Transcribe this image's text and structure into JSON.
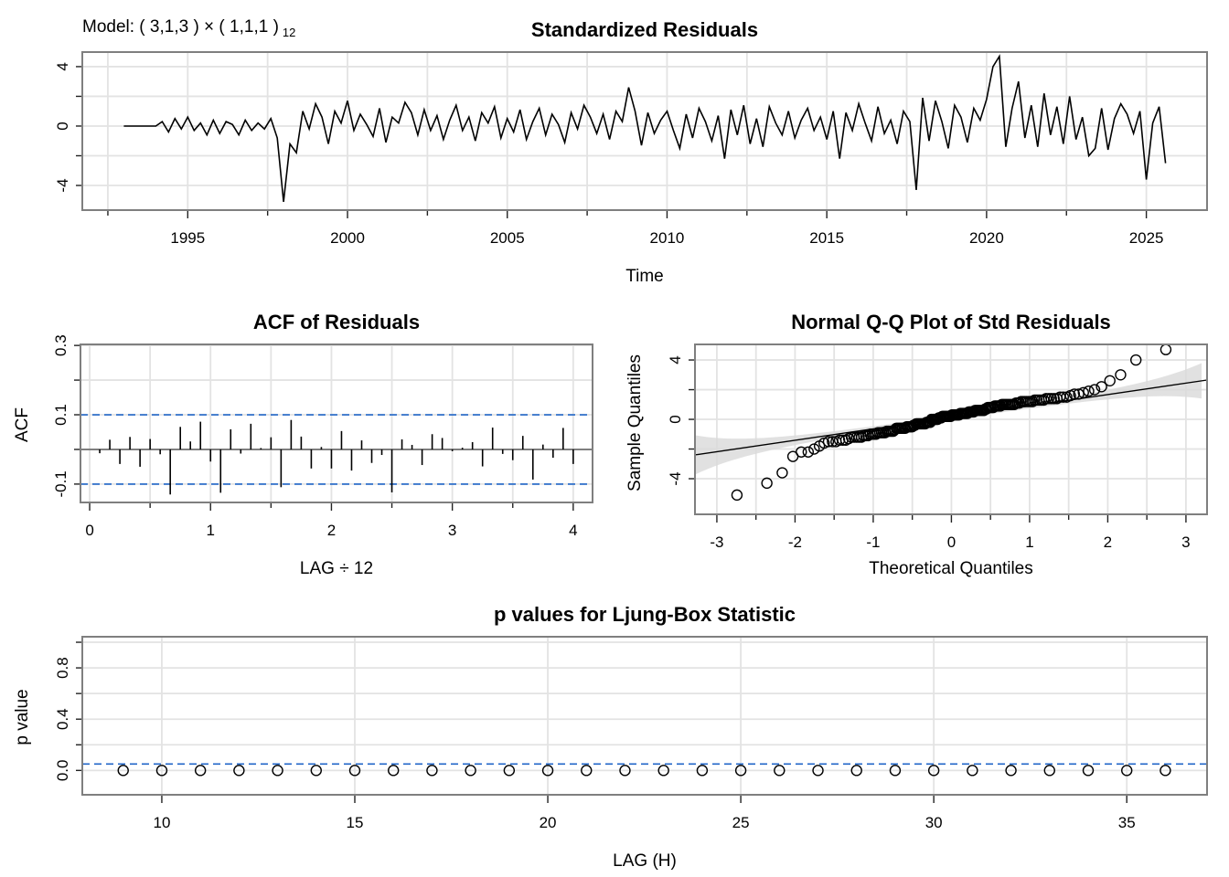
{
  "model_label": {
    "text": "Model: ( 3,1,3 ) × ( 1,1,1 )",
    "subscript": "12"
  },
  "chart_data": [
    {
      "type": "line",
      "title": "Standardized Residuals",
      "xlabel": "Time",
      "ylabel": "",
      "xlim": [
        1991.7,
        2026.9
      ],
      "ylim": [
        -5.66,
        4.98
      ],
      "grid": true,
      "xticks": [
        1995,
        2000,
        2005,
        2010,
        2015,
        2020,
        2025
      ],
      "yticks": [
        4,
        0,
        -4
      ],
      "time_start": 1993.0,
      "time_step": 0.2,
      "values": [
        0,
        0,
        0,
        0,
        0,
        0,
        0.3,
        -0.4,
        0.5,
        -0.2,
        0.6,
        -0.3,
        0.2,
        -0.6,
        0.4,
        -0.5,
        0.3,
        0.1,
        -0.6,
        0.4,
        -0.3,
        0.2,
        -0.2,
        0.5,
        -0.8,
        -5.1,
        -1.2,
        -1.8,
        1.0,
        -0.2,
        1.5,
        0.6,
        -1.2,
        1.0,
        0.2,
        1.7,
        -0.3,
        0.8,
        0.1,
        -0.7,
        1.2,
        -1.1,
        0.6,
        0.2,
        1.6,
        0.9,
        -0.6,
        1.1,
        -0.3,
        0.7,
        -0.9,
        0.4,
        1.4,
        -0.3,
        0.6,
        -1.0,
        0.9,
        0.2,
        1.3,
        -0.8,
        0.5,
        -0.4,
        1.1,
        -0.9,
        0.3,
        1.2,
        -0.6,
        0.8,
        0.1,
        -1.1,
        0.9,
        -0.2,
        1.4,
        0.6,
        -0.5,
        0.8,
        -0.9,
        1.0,
        0.3,
        2.6,
        1.0,
        -1.3,
        0.9,
        -0.5,
        0.4,
        1.0,
        -0.3,
        -1.5,
        0.8,
        -0.8,
        1.2,
        0.3,
        -1.0,
        0.7,
        -2.2,
        1.1,
        -0.6,
        1.4,
        -1.2,
        0.5,
        -1.4,
        1.3,
        0.2,
        -0.6,
        1.0,
        -0.8,
        0.4,
        1.2,
        -0.3,
        0.6,
        -0.9,
        1.0,
        -2.2,
        0.9,
        -0.3,
        1.5,
        0.2,
        -1.0,
        1.3,
        -0.5,
        0.4,
        -1.2,
        1.0,
        0.3,
        -4.3,
        1.9,
        -1.0,
        1.7,
        0.3,
        -1.5,
        1.4,
        0.6,
        -1.1,
        1.2,
        0.4,
        1.8,
        4.0,
        4.7,
        -1.4,
        1.2,
        3.0,
        -0.8,
        1.4,
        -1.4,
        2.2,
        -0.6,
        1.3,
        -1.2,
        2.0,
        -0.9,
        0.6,
        -2.0,
        -1.5,
        1.2,
        -1.6,
        0.5,
        1.5,
        0.8,
        -0.5,
        1.0,
        -3.6,
        0.2,
        1.3,
        -2.5
      ]
    },
    {
      "type": "bar",
      "title": "ACF of Residuals",
      "xlabel": "LAG ÷ 12",
      "ylabel": "ACF",
      "xlim": [
        -0.076,
        4.16
      ],
      "ylim": [
        -0.153,
        0.303
      ],
      "grid": true,
      "xticks": [
        0,
        1,
        2,
        3,
        4
      ],
      "yticks": [
        "-0.1",
        "0.1",
        "0.3"
      ],
      "conf_limit": 0.1,
      "conf_color": "#2166c8",
      "lags_divisor": 12,
      "values": [
        -0.011,
        0.028,
        -0.042,
        0.036,
        -0.05,
        0.03,
        -0.014,
        -0.13,
        0.065,
        0.023,
        0.08,
        -0.035,
        -0.125,
        0.058,
        -0.012,
        0.074,
        0.004,
        0.035,
        -0.109,
        0.085,
        0.037,
        -0.055,
        0.007,
        -0.055,
        0.053,
        -0.061,
        0.026,
        -0.039,
        -0.016,
        -0.124,
        0.029,
        0.013,
        -0.045,
        0.044,
        0.033,
        -0.005,
        0.005,
        0.021,
        -0.049,
        0.063,
        -0.013,
        -0.031,
        0.039,
        -0.087,
        0.014,
        -0.024,
        0.062,
        -0.042
      ]
    },
    {
      "type": "scatter",
      "title": "Normal Q-Q Plot of Std Residuals",
      "xlabel": "Theoretical Quantiles",
      "ylabel": "Sample Quantiles",
      "xlim": [
        -3.28,
        3.27
      ],
      "ylim": [
        -6.4,
        5.05
      ],
      "grid": true,
      "xticks": [
        -3,
        -2,
        -1,
        0,
        1,
        2,
        3
      ],
      "yticks": [
        4,
        0,
        -4
      ],
      "sample": "standardized residuals",
      "reference_line": {
        "intercept": 0.13,
        "slope": 0.77
      },
      "band_color": "#d9d9d9"
    },
    {
      "type": "scatter",
      "title": "p values for Ljung-Box Statistic",
      "xlabel": "LAG (H)",
      "ylabel": "p value",
      "xlim": [
        7.94,
        37.08
      ],
      "ylim": [
        -0.19,
        1.043
      ],
      "grid": true,
      "xticks": [
        10,
        15,
        20,
        25,
        30,
        35
      ],
      "yticks": [
        "0.0",
        "0.4",
        "0.8"
      ],
      "threshold": 0.05,
      "threshold_color": "#2166c8",
      "lags": [
        9,
        10,
        11,
        12,
        13,
        14,
        15,
        16,
        17,
        18,
        19,
        20,
        21,
        22,
        23,
        24,
        25,
        26,
        27,
        28,
        29,
        30,
        31,
        32,
        33,
        34,
        35,
        36
      ],
      "values": [
        0,
        0,
        0,
        0,
        0,
        0,
        0,
        0,
        0,
        0,
        0,
        0,
        0,
        0,
        0,
        0,
        0,
        0,
        0,
        0,
        0,
        0,
        0,
        0,
        0,
        0,
        0,
        0
      ]
    }
  ]
}
